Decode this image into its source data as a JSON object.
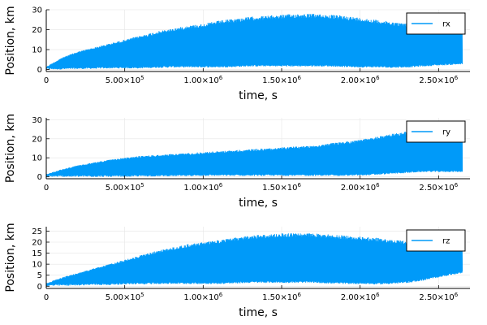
{
  "colors": {
    "series": "#009AF9",
    "grid": "#E6E6E6",
    "axis": "#000000",
    "background": "#FFFFFF"
  },
  "chart_data": [
    {
      "type": "line",
      "xlabel": "time, s",
      "ylabel": "Position, km",
      "xlim": [
        0,
        2700000
      ],
      "ylim": [
        -1,
        30
      ],
      "xticks": [
        0,
        500000,
        1000000,
        1500000,
        2000000,
        2500000
      ],
      "xtick_labels": [
        {
          "mant": "0",
          "exp": ""
        },
        {
          "mant": "5.00×10",
          "exp": "5"
        },
        {
          "mant": "1.00×10",
          "exp": "6"
        },
        {
          "mant": "1.50×10",
          "exp": "6"
        },
        {
          "mant": "2.00×10",
          "exp": "6"
        },
        {
          "mant": "2.50×10",
          "exp": "6"
        }
      ],
      "yticks": [
        0,
        10,
        20,
        30
      ],
      "ytick_labels": [
        "0",
        "10",
        "20",
        "30"
      ],
      "grid": true,
      "legend_position": "top-right",
      "series": [
        {
          "name": "rx",
          "x": [
            0,
            100000,
            200000,
            300000,
            400000,
            500000,
            600000,
            700000,
            800000,
            900000,
            1000000,
            1100000,
            1200000,
            1300000,
            1400000,
            1500000,
            1600000,
            1700000,
            1800000,
            1900000,
            2000000,
            2100000,
            2200000,
            2300000,
            2400000,
            2500000,
            2650000
          ],
          "upper": [
            1.5,
            6,
            9,
            11,
            13,
            15,
            17,
            19,
            20.5,
            22,
            23,
            24.5,
            25.5,
            26.5,
            27,
            27.5,
            28,
            28,
            27.5,
            27,
            26,
            25,
            24,
            23,
            22,
            21,
            21
          ],
          "lower": [
            0,
            0,
            0.2,
            0.3,
            0.5,
            0.5,
            0.5,
            0.8,
            1,
            1,
            1,
            1,
            1.2,
            1.5,
            1.5,
            1.5,
            1.5,
            1.5,
            1.5,
            1.2,
            1,
            1,
            0.8,
            1,
            1.5,
            2,
            2.5
          ]
        }
      ]
    },
    {
      "type": "line",
      "xlabel": "time, s",
      "ylabel": "Position, km",
      "xlim": [
        0,
        2700000
      ],
      "ylim": [
        -1,
        31
      ],
      "xticks": [
        0,
        500000,
        1000000,
        1500000,
        2000000,
        2500000
      ],
      "xtick_labels": [
        {
          "mant": "0",
          "exp": ""
        },
        {
          "mant": "5.00×10",
          "exp": "5"
        },
        {
          "mant": "1.00×10",
          "exp": "6"
        },
        {
          "mant": "1.50×10",
          "exp": "6"
        },
        {
          "mant": "2.00×10",
          "exp": "6"
        },
        {
          "mant": "2.50×10",
          "exp": "6"
        }
      ],
      "yticks": [
        0,
        10,
        20,
        30
      ],
      "ytick_labels": [
        "0",
        "10",
        "20",
        "30"
      ],
      "grid": true,
      "legend_position": "top-right",
      "series": [
        {
          "name": "ry",
          "x": [
            0,
            100000,
            200000,
            300000,
            400000,
            500000,
            600000,
            700000,
            800000,
            900000,
            1000000,
            1100000,
            1200000,
            1300000,
            1400000,
            1500000,
            1600000,
            1700000,
            1800000,
            1900000,
            2000000,
            2100000,
            2200000,
            2300000,
            2400000,
            2500000,
            2650000
          ],
          "upper": [
            1.5,
            4,
            6,
            7.5,
            9,
            10,
            11,
            11.5,
            12,
            12.5,
            13,
            13.5,
            14,
            14.5,
            15,
            15.5,
            16,
            16.5,
            17.5,
            18.5,
            19.5,
            21,
            22.5,
            24,
            25.5,
            27,
            29
          ],
          "lower": [
            0,
            0,
            0,
            0,
            0,
            0,
            0.2,
            0.2,
            0.3,
            0.3,
            0.5,
            0.5,
            0.5,
            0.5,
            0.5,
            0.5,
            0.5,
            0.5,
            0.5,
            0.5,
            0.6,
            1,
            1.5,
            2,
            2.5,
            2.5,
            2.5
          ]
        }
      ]
    },
    {
      "type": "line",
      "xlabel": "time, s",
      "ylabel": "Position, km",
      "xlim": [
        0,
        2700000
      ],
      "ylim": [
        -1,
        27
      ],
      "xticks": [
        0,
        500000,
        1000000,
        1500000,
        2000000,
        2500000
      ],
      "xtick_labels": [
        {
          "mant": "0",
          "exp": ""
        },
        {
          "mant": "5.00×10",
          "exp": "5"
        },
        {
          "mant": "1.00×10",
          "exp": "6"
        },
        {
          "mant": "1.50×10",
          "exp": "6"
        },
        {
          "mant": "2.00×10",
          "exp": "6"
        },
        {
          "mant": "2.50×10",
          "exp": "6"
        }
      ],
      "yticks": [
        0,
        5,
        10,
        15,
        20,
        25
      ],
      "ytick_labels": [
        "0",
        "5",
        "10",
        "15",
        "20",
        "25"
      ],
      "grid": true,
      "legend_position": "top-right",
      "series": [
        {
          "name": "rz",
          "x": [
            0,
            100000,
            200000,
            300000,
            400000,
            500000,
            600000,
            700000,
            800000,
            900000,
            1000000,
            1100000,
            1200000,
            1300000,
            1400000,
            1500000,
            1600000,
            1700000,
            1800000,
            1900000,
            2000000,
            2100000,
            2200000,
            2300000,
            2400000,
            2500000,
            2650000
          ],
          "upper": [
            1.5,
            4,
            6,
            8,
            10,
            12,
            14,
            16,
            17.5,
            19,
            20,
            21,
            22,
            23,
            23.5,
            24,
            24,
            24,
            23.5,
            23,
            22.5,
            22,
            21,
            20.5,
            19.5,
            19,
            18
          ],
          "lower": [
            0,
            0.2,
            0.3,
            0.5,
            0.5,
            0.8,
            0.8,
            1,
            1,
            1,
            1,
            1,
            1.2,
            1.5,
            1.5,
            1.5,
            1.5,
            1.5,
            1.2,
            1,
            1,
            0.8,
            1,
            1.5,
            2.5,
            4,
            6
          ]
        }
      ]
    }
  ]
}
